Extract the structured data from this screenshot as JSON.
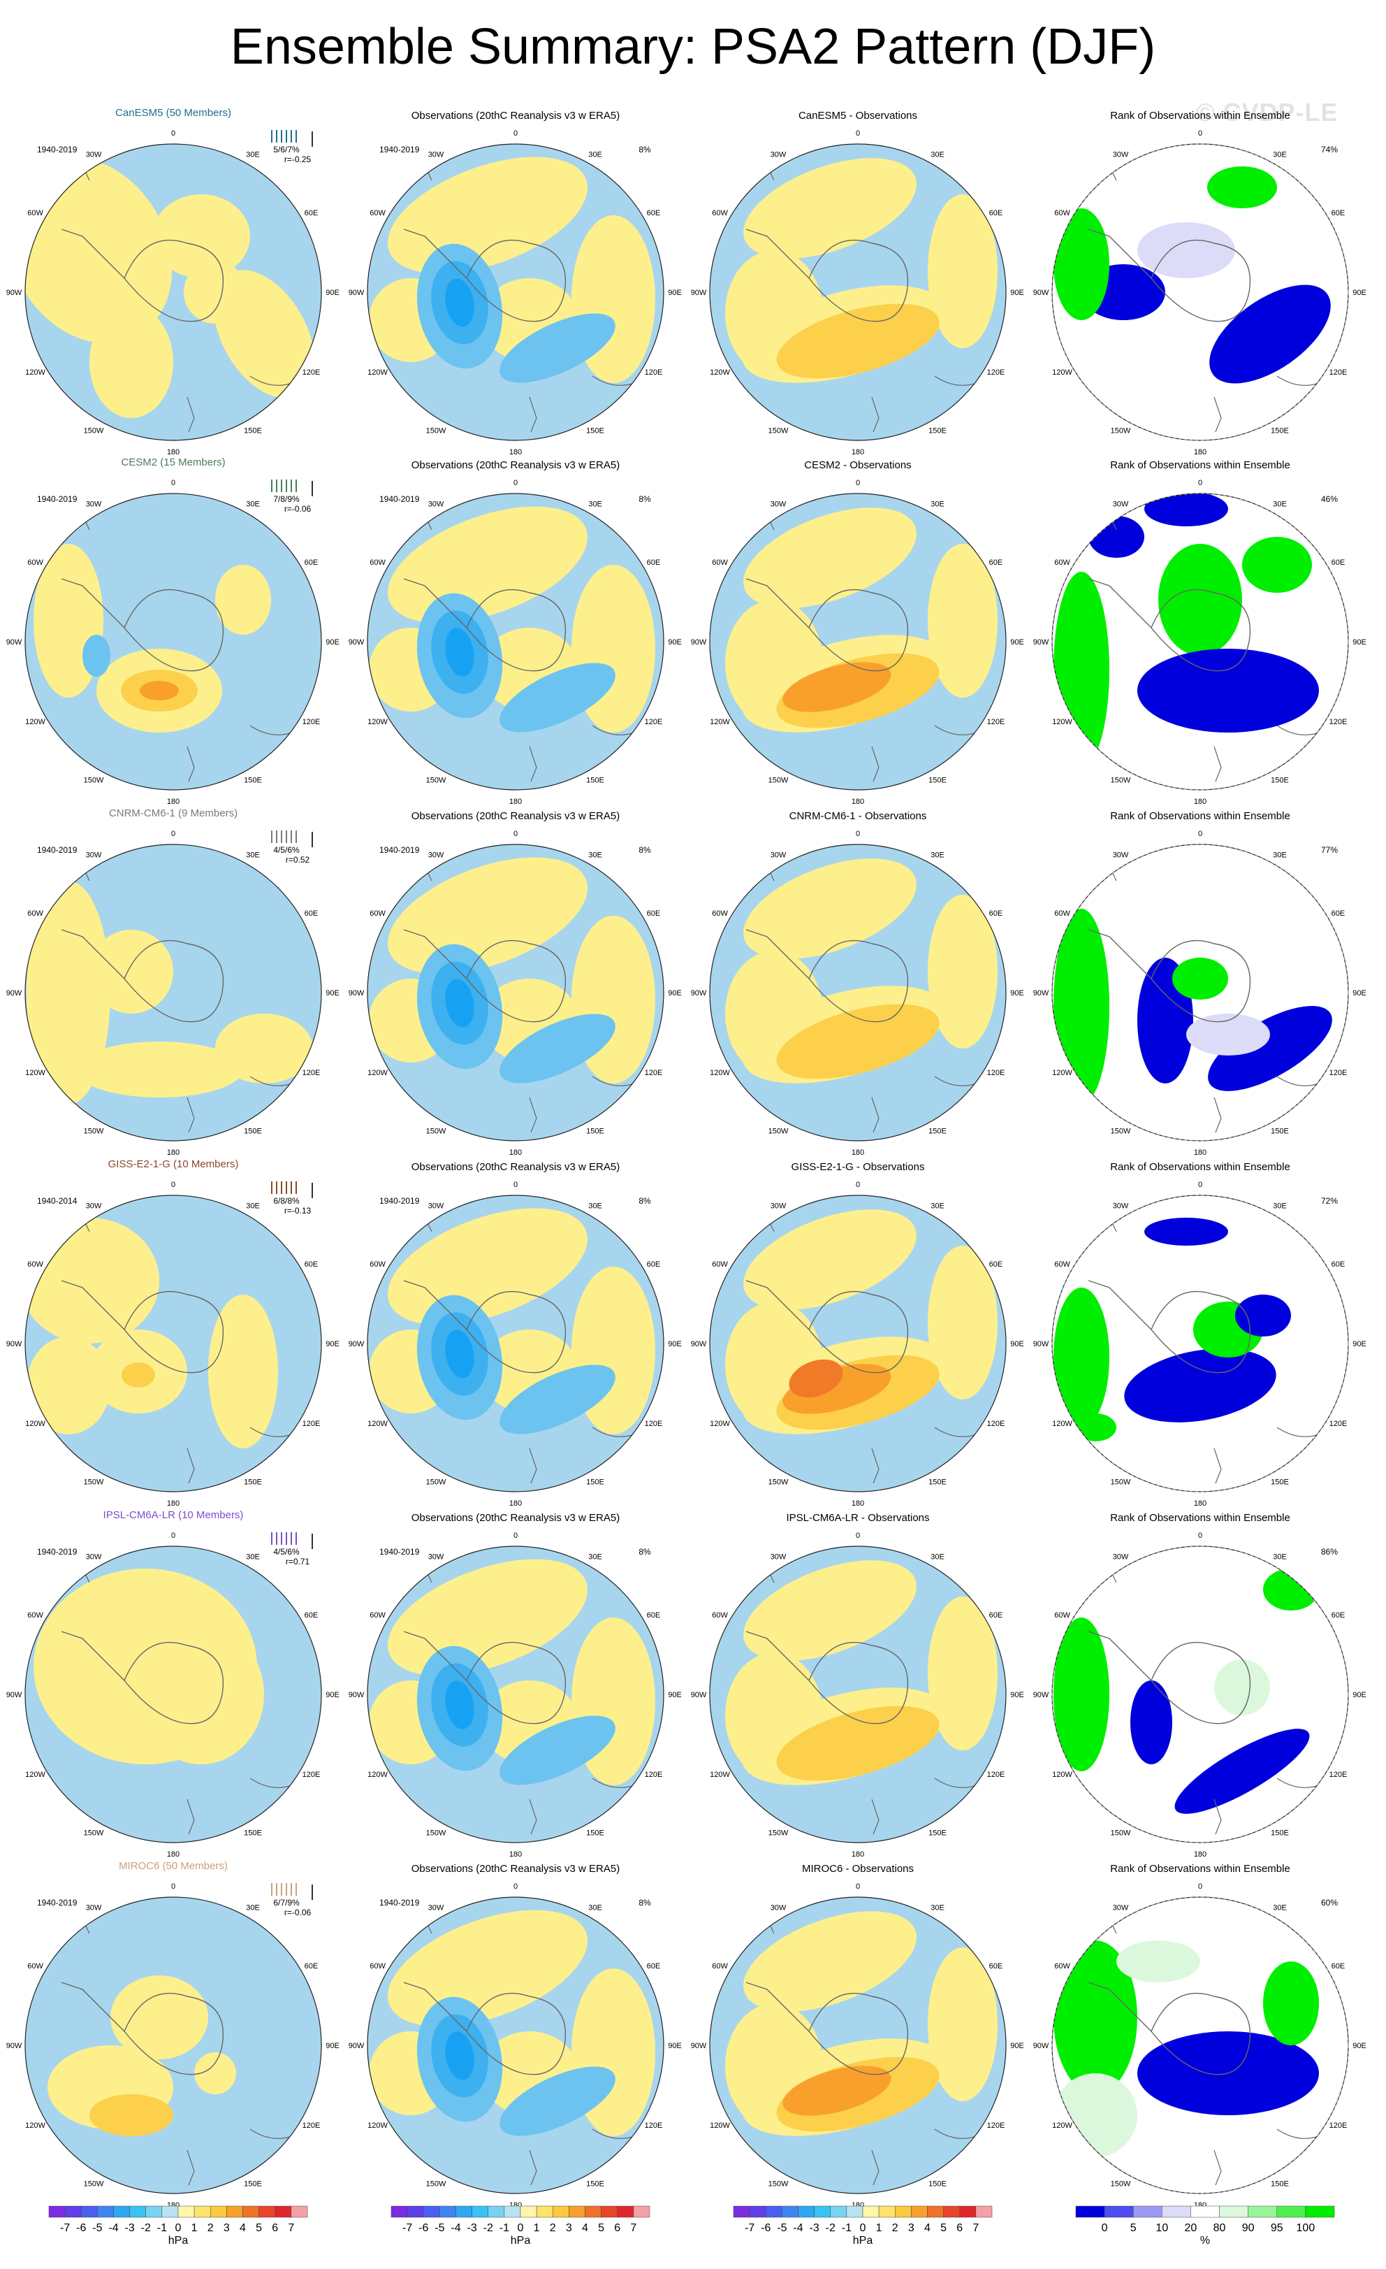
{
  "title": "Ensemble Summary: PSA2 Pattern (DJF)",
  "watermark": "© CVDP-LE",
  "columns": {
    "obs_title": "Observations (20thC Reanalysis v3 w ERA5)",
    "rank_title": "Rank of Observations within Ensemble"
  },
  "obs_period": "1940-2019",
  "obs_pct": "8%",
  "lon_labels": [
    "0",
    "30E",
    "60E",
    "90E",
    "120E",
    "150E",
    "180",
    "150W",
    "120W",
    "90W",
    "60W",
    "30W"
  ],
  "colors": {
    "ens_model_title": [
      "#1f6e8c",
      "#4b7d5a",
      "#7a7a7a",
      "#8a4a2a",
      "#7a4fc9",
      "#c9a27a"
    ],
    "ocean_blue": "#a8d5ee",
    "pos_yellow": "#fdf08c",
    "rank_low": "#0000dd",
    "rank_high": "#00ee00"
  },
  "rows": [
    {
      "model": "CanESM5 (50 Members)",
      "period": "1940-2019",
      "members_pct": "5/6/7%",
      "r": "r=-0.25",
      "diff_title": "CanESM5 - Observations",
      "rank_pct": "74%"
    },
    {
      "model": "CESM2 (15 Members)",
      "period": "1940-2019",
      "members_pct": "7/8/9%",
      "r": "r=-0.06",
      "diff_title": "CESM2 - Observations",
      "rank_pct": "46%"
    },
    {
      "model": "CNRM-CM6-1 (9 Members)",
      "period": "1940-2019",
      "members_pct": "4/5/6%",
      "r": "r=0.52",
      "diff_title": "CNRM-CM6-1 - Observations",
      "rank_pct": "77%"
    },
    {
      "model": "GISS-E2-1-G (10 Members)",
      "period": "1940-2014",
      "members_pct": "6/8/8%",
      "r": "r=-0.13",
      "diff_title": "GISS-E2-1-G - Observations",
      "rank_pct": "72%"
    },
    {
      "model": "IPSL-CM6A-LR (10 Members)",
      "period": "1940-2019",
      "members_pct": "4/5/6%",
      "r": "r=0.71",
      "diff_title": "IPSL-CM6A-LR - Observations",
      "rank_pct": "86%"
    },
    {
      "model": "MIROC6 (50 Members)",
      "period": "1940-2019",
      "members_pct": "6/7/9%",
      "r": "r=-0.06",
      "diff_title": "MIROC6 - Observations",
      "rank_pct": "60%"
    }
  ],
  "colorbars": {
    "hpa_ticks": [
      "-7",
      "-6",
      "-5",
      "-4",
      "-3",
      "-2",
      "-1",
      "0",
      "1",
      "2",
      "3",
      "4",
      "5",
      "6",
      "7"
    ],
    "hpa_colors": [
      "#7b2ce0",
      "#5e3fe8",
      "#4a5ff0",
      "#3f85f2",
      "#2ea8f4",
      "#39c3f2",
      "#79d2f0",
      "#b9e3f3",
      "#fff6a8",
      "#fde36a",
      "#fbc93e",
      "#f7a12c",
      "#f0722a",
      "#e8452b",
      "#e0262d",
      "#f5a0a5"
    ],
    "hpa_unit": "hPa",
    "pct_ticks": [
      "0",
      "5",
      "10",
      "20",
      "80",
      "90",
      "95",
      "100"
    ],
    "pct_colors": [
      "#0000dd",
      "#4d4df0",
      "#9a9af5",
      "#dcdcf8",
      "#ffffff",
      "#dcf8dc",
      "#9af59a",
      "#4df04d",
      "#00ee00"
    ],
    "pct_unit": "%"
  },
  "chart_data": [
    {
      "type": "heatmap",
      "title": "CanESM5 (50 Members)",
      "projection": "south polar stereographic",
      "units": "hPa",
      "contour_levels": [
        -7,
        -6,
        -5,
        -4,
        -3,
        -2,
        -1,
        0,
        1,
        2,
        3,
        4,
        5,
        6,
        7
      ]
    },
    {
      "type": "heatmap",
      "title": "Observations (20thC Reanalysis v3 w ERA5)",
      "units": "hPa",
      "contour_levels": [
        -7,
        -6,
        -5,
        -4,
        -3,
        -2,
        -1,
        0,
        1,
        2,
        3,
        4,
        5,
        6,
        7
      ]
    },
    {
      "type": "heatmap",
      "title": "CanESM5 - Observations",
      "units": "hPa"
    },
    {
      "type": "heatmap",
      "title": "Rank of Observations within Ensemble",
      "units": "%",
      "levels": [
        0,
        5,
        10,
        20,
        80,
        90,
        95,
        100
      ]
    }
  ]
}
